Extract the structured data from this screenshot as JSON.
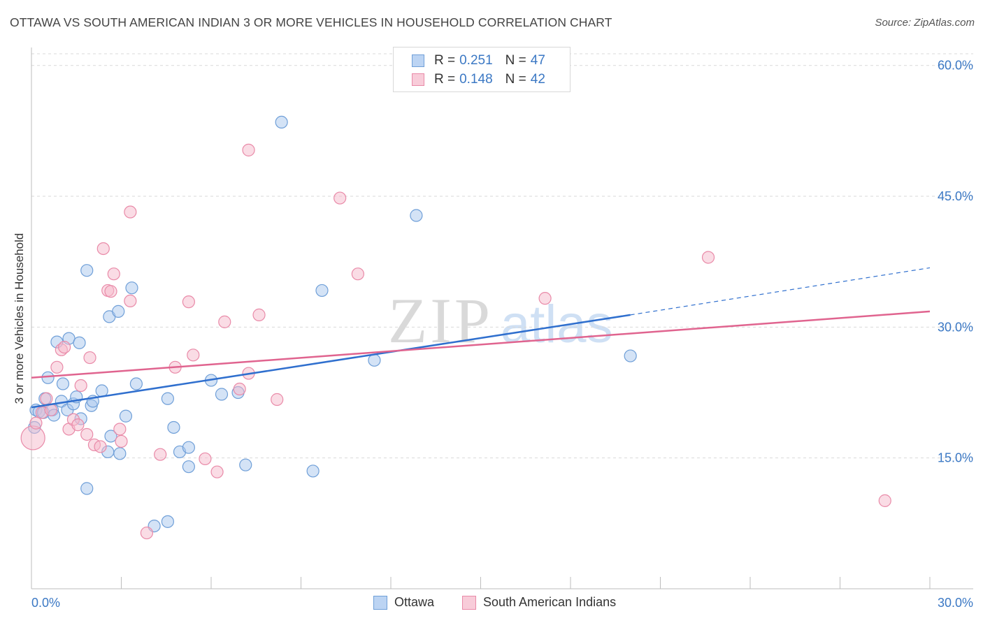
{
  "title": "OTTAWA VS SOUTH AMERICAN INDIAN 3 OR MORE VEHICLES IN HOUSEHOLD CORRELATION CHART",
  "source": "Source: ZipAtlas.com",
  "watermark": {
    "zip": "ZIP",
    "atlas": "atlas"
  },
  "legend": {
    "ottawa": {
      "r_label": "R =",
      "r_value": "0.251",
      "n_label": "N =",
      "n_value": "47"
    },
    "sai": {
      "r_label": "R =",
      "r_value": "0.148",
      "n_label": "N =",
      "n_value": "42"
    }
  },
  "bottom_legend": {
    "ottawa": "Ottawa",
    "sai": "South American Indians"
  },
  "colors": {
    "ottawa_fill": "#a9c8ee",
    "ottawa_stroke": "#6f9fd8",
    "ottawa_line": "#2f6fce",
    "sai_fill": "#f5b9cc",
    "sai_stroke": "#e98aa8",
    "sai_line": "#e0648f",
    "axis_text": "#3b78c4",
    "grid": "#d9d9d9"
  },
  "chart_data": {
    "type": "scatter",
    "title": "OTTAWA VS SOUTH AMERICAN INDIAN 3 OR MORE VEHICLES IN HOUSEHOLD CORRELATION CHART",
    "xlabel": "",
    "ylabel": "3 or more Vehicles in Household",
    "xlim": [
      0,
      30
    ],
    "ylim": [
      0,
      61.5
    ],
    "x_tick_labels": [
      "0.0%",
      "30.0%"
    ],
    "y_ticks": [
      15,
      30,
      45,
      60
    ],
    "y_tick_labels": [
      "15.0%",
      "30.0%",
      "45.0%",
      "60.0%"
    ],
    "grid": true,
    "series": [
      {
        "name": "Ottawa",
        "points": [
          [
            0.1,
            18.5
          ],
          [
            0.15,
            20.5
          ],
          [
            0.25,
            20.3
          ],
          [
            0.4,
            20.2
          ],
          [
            0.45,
            21.8
          ],
          [
            0.55,
            24.2
          ],
          [
            0.7,
            20.5
          ],
          [
            0.75,
            19.9
          ],
          [
            0.85,
            28.3
          ],
          [
            1.0,
            21.5
          ],
          [
            1.05,
            23.5
          ],
          [
            1.2,
            20.5
          ],
          [
            1.25,
            28.7
          ],
          [
            1.4,
            21.2
          ],
          [
            1.5,
            22.0
          ],
          [
            1.6,
            28.2
          ],
          [
            1.65,
            19.5
          ],
          [
            1.85,
            36.5
          ],
          [
            1.85,
            11.5
          ],
          [
            2.0,
            21.0
          ],
          [
            2.05,
            21.5
          ],
          [
            2.35,
            22.7
          ],
          [
            2.55,
            15.7
          ],
          [
            2.6,
            31.2
          ],
          [
            2.65,
            17.5
          ],
          [
            2.9,
            31.8
          ],
          [
            2.95,
            15.5
          ],
          [
            3.15,
            19.8
          ],
          [
            3.35,
            34.5
          ],
          [
            3.5,
            23.5
          ],
          [
            4.1,
            7.2
          ],
          [
            4.55,
            7.7
          ],
          [
            4.55,
            21.8
          ],
          [
            4.75,
            18.5
          ],
          [
            4.95,
            15.7
          ],
          [
            5.25,
            16.2
          ],
          [
            5.25,
            14.0
          ],
          [
            6.0,
            23.9
          ],
          [
            6.35,
            22.3
          ],
          [
            6.9,
            22.5
          ],
          [
            7.15,
            14.2
          ],
          [
            8.35,
            53.5
          ],
          [
            9.4,
            13.5
          ],
          [
            9.7,
            34.2
          ],
          [
            11.45,
            26.2
          ],
          [
            12.85,
            42.8
          ],
          [
            20.0,
            26.7
          ]
        ]
      },
      {
        "name": "South American Indians",
        "points": [
          [
            0.05,
            17.3
          ],
          [
            0.15,
            19.0
          ],
          [
            0.35,
            20.2
          ],
          [
            0.5,
            21.8
          ],
          [
            0.65,
            20.5
          ],
          [
            0.85,
            25.4
          ],
          [
            1.0,
            27.4
          ],
          [
            1.1,
            27.7
          ],
          [
            1.25,
            18.3
          ],
          [
            1.4,
            19.4
          ],
          [
            1.55,
            18.8
          ],
          [
            1.65,
            23.3
          ],
          [
            1.85,
            17.7
          ],
          [
            1.95,
            26.5
          ],
          [
            2.1,
            16.5
          ],
          [
            2.3,
            16.3
          ],
          [
            2.4,
            39.0
          ],
          [
            2.55,
            34.2
          ],
          [
            2.65,
            34.1
          ],
          [
            2.75,
            36.1
          ],
          [
            2.95,
            18.3
          ],
          [
            3.0,
            16.9
          ],
          [
            3.3,
            33.0
          ],
          [
            3.3,
            43.2
          ],
          [
            3.85,
            6.4
          ],
          [
            4.3,
            15.4
          ],
          [
            4.8,
            25.4
          ],
          [
            5.25,
            32.9
          ],
          [
            5.4,
            26.8
          ],
          [
            5.8,
            14.9
          ],
          [
            6.2,
            13.4
          ],
          [
            6.45,
            30.6
          ],
          [
            6.95,
            22.9
          ],
          [
            7.25,
            24.7
          ],
          [
            7.25,
            50.3
          ],
          [
            7.6,
            31.4
          ],
          [
            8.2,
            21.7
          ],
          [
            10.3,
            44.8
          ],
          [
            10.9,
            36.1
          ],
          [
            17.15,
            33.3
          ],
          [
            22.6,
            38.0
          ],
          [
            28.5,
            10.1
          ]
        ]
      }
    ],
    "trend_lines": [
      {
        "series": "Ottawa",
        "from": [
          0,
          20.8
        ],
        "to": [
          20.0,
          31.4
        ],
        "dashed_to": [
          30.0,
          36.8
        ]
      },
      {
        "series": "South American Indians",
        "from": [
          0,
          24.2
        ],
        "to": [
          30.0,
          31.8
        ]
      }
    ],
    "legend_position": "top-center"
  }
}
